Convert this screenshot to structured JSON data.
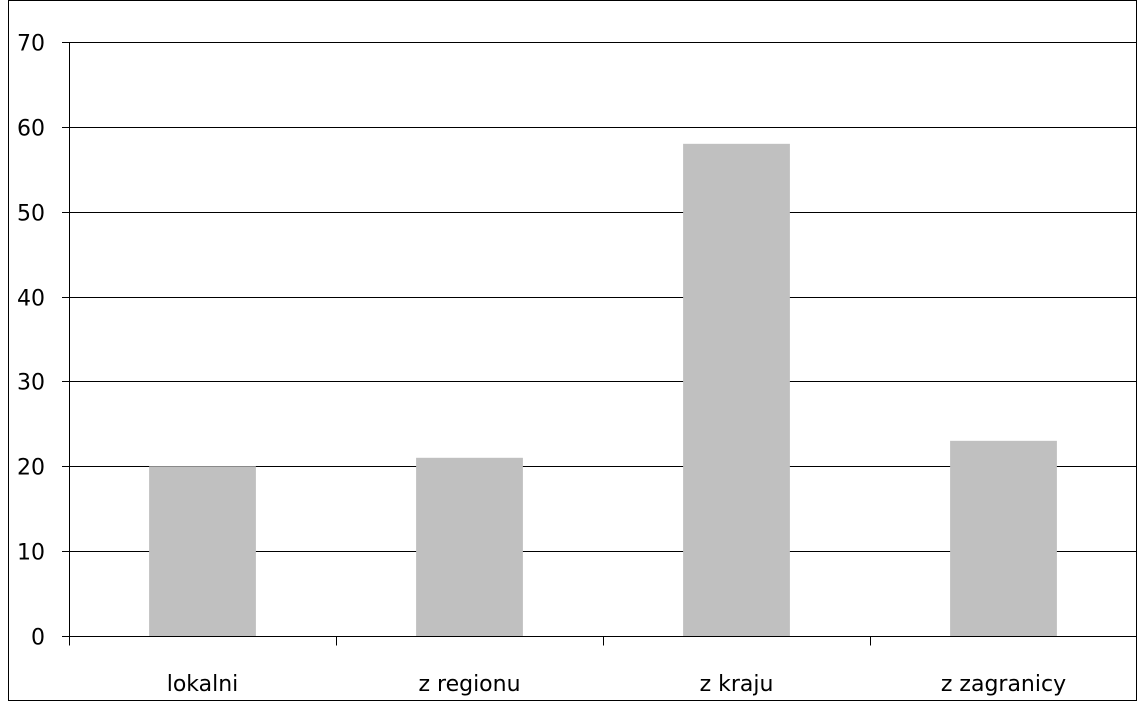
{
  "chart_data": {
    "type": "bar",
    "title": "",
    "xlabel": "",
    "ylabel": "",
    "categories": [
      "lokalni",
      "z regionu",
      "z kraju",
      "z zagranicy"
    ],
    "values": [
      20,
      21,
      58,
      23
    ],
    "ylim": [
      0,
      70
    ],
    "yticks": [
      0,
      10,
      20,
      30,
      40,
      50,
      60,
      70
    ],
    "ytick_labels": [
      "0",
      "10",
      "20",
      "30",
      "40",
      "50",
      "60",
      "70"
    ],
    "grid": true,
    "legend": "none",
    "bar_color": "#c0c0c0",
    "grid_color": "#000000",
    "axis_color": "#000000",
    "frame_color": "#000000"
  }
}
